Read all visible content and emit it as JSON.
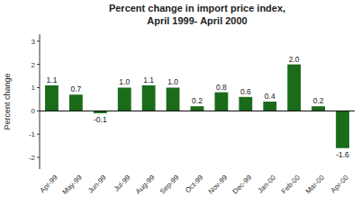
{
  "chart_data": {
    "type": "bar",
    "title": "Percent change in import price index,",
    "subtitle": "April 1999- April 2000",
    "categories": [
      "Apr-99",
      "May-99",
      "Jun-99",
      "Jul-99",
      "Aug-99",
      "Sep-99",
      "Oct-99",
      "Nov-99",
      "Dec-99",
      "Jan-00",
      "Feb-00",
      "Mar-00",
      "Apr-00"
    ],
    "values": [
      1.1,
      0.7,
      -0.1,
      1.0,
      1.1,
      1.0,
      0.2,
      0.8,
      0.6,
      0.4,
      2.0,
      0.2,
      -1.6
    ],
    "value_labels": [
      "1.1",
      "0.7",
      "-0.1",
      "1.0",
      "1.1",
      "1.0",
      "0.2",
      "0.8",
      "0.6",
      "0.4",
      "2.0",
      "0.2",
      "-1.6"
    ],
    "data_labels": true,
    "color": "#1a6b1a",
    "y_label": "Percent change",
    "ylim": [
      -2.5,
      3.3
    ],
    "yticks": [
      -2,
      -1,
      0,
      1,
      2,
      3
    ],
    "grid": false
  }
}
